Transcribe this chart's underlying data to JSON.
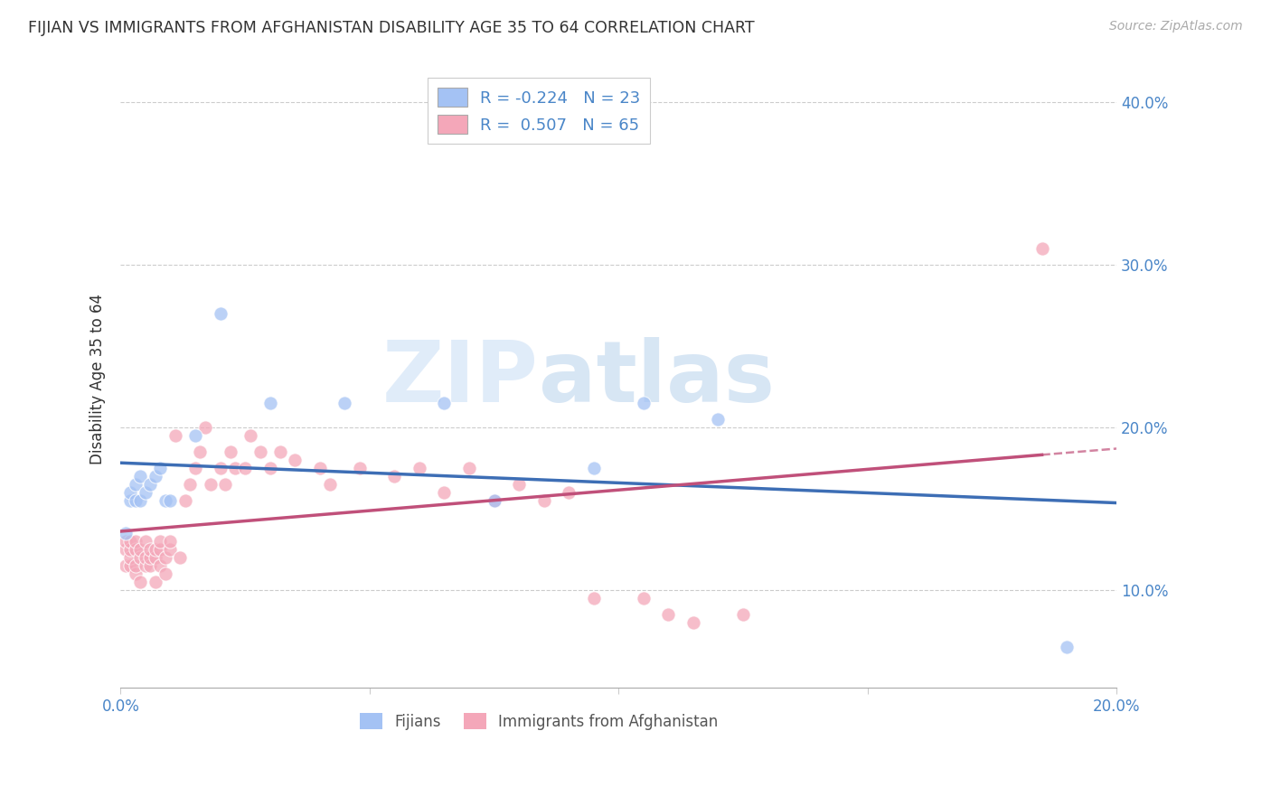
{
  "title": "FIJIAN VS IMMIGRANTS FROM AFGHANISTAN DISABILITY AGE 35 TO 64 CORRELATION CHART",
  "source": "Source: ZipAtlas.com",
  "ylabel": "Disability Age 35 to 64",
  "xlim": [
    0.0,
    0.2
  ],
  "ylim": [
    0.04,
    0.42
  ],
  "xticks": [
    0.0,
    0.05,
    0.1,
    0.15,
    0.2
  ],
  "xtick_labels": [
    "0.0%",
    "",
    "",
    "",
    "20.0%"
  ],
  "yticks": [
    0.1,
    0.2,
    0.3,
    0.4
  ],
  "ytick_labels": [
    "10.0%",
    "20.0%",
    "30.0%",
    "40.0%"
  ],
  "blue_color": "#a4c2f4",
  "pink_color": "#f4a7b9",
  "blue_line_color": "#3d6eb5",
  "pink_line_color": "#c0507a",
  "watermark_zip": "ZIP",
  "watermark_atlas": "atlas",
  "legend_R_blue": "-0.224",
  "legend_N_blue": "23",
  "legend_R_pink": "0.507",
  "legend_N_pink": "65",
  "fijian_x": [
    0.001,
    0.002,
    0.002,
    0.003,
    0.003,
    0.004,
    0.004,
    0.005,
    0.006,
    0.007,
    0.008,
    0.009,
    0.01,
    0.015,
    0.02,
    0.03,
    0.045,
    0.065,
    0.075,
    0.095,
    0.105,
    0.12,
    0.19
  ],
  "fijian_y": [
    0.135,
    0.155,
    0.16,
    0.155,
    0.165,
    0.155,
    0.17,
    0.16,
    0.165,
    0.17,
    0.175,
    0.155,
    0.155,
    0.195,
    0.27,
    0.215,
    0.215,
    0.215,
    0.155,
    0.175,
    0.215,
    0.205,
    0.065
  ],
  "afghan_x": [
    0.001,
    0.001,
    0.001,
    0.002,
    0.002,
    0.002,
    0.002,
    0.003,
    0.003,
    0.003,
    0.003,
    0.004,
    0.004,
    0.004,
    0.005,
    0.005,
    0.005,
    0.006,
    0.006,
    0.006,
    0.007,
    0.007,
    0.007,
    0.008,
    0.008,
    0.008,
    0.009,
    0.009,
    0.01,
    0.01,
    0.011,
    0.012,
    0.013,
    0.014,
    0.015,
    0.016,
    0.017,
    0.018,
    0.02,
    0.021,
    0.022,
    0.023,
    0.025,
    0.026,
    0.028,
    0.03,
    0.032,
    0.035,
    0.04,
    0.042,
    0.048,
    0.055,
    0.06,
    0.065,
    0.07,
    0.075,
    0.08,
    0.085,
    0.09,
    0.095,
    0.105,
    0.11,
    0.115,
    0.125,
    0.185
  ],
  "afghan_y": [
    0.125,
    0.13,
    0.115,
    0.115,
    0.12,
    0.125,
    0.13,
    0.11,
    0.115,
    0.125,
    0.13,
    0.105,
    0.12,
    0.125,
    0.115,
    0.12,
    0.13,
    0.115,
    0.12,
    0.125,
    0.105,
    0.12,
    0.125,
    0.115,
    0.125,
    0.13,
    0.11,
    0.12,
    0.125,
    0.13,
    0.195,
    0.12,
    0.155,
    0.165,
    0.175,
    0.185,
    0.2,
    0.165,
    0.175,
    0.165,
    0.185,
    0.175,
    0.175,
    0.195,
    0.185,
    0.175,
    0.185,
    0.18,
    0.175,
    0.165,
    0.175,
    0.17,
    0.175,
    0.16,
    0.175,
    0.155,
    0.165,
    0.155,
    0.16,
    0.095,
    0.095,
    0.085,
    0.08,
    0.085,
    0.31
  ]
}
